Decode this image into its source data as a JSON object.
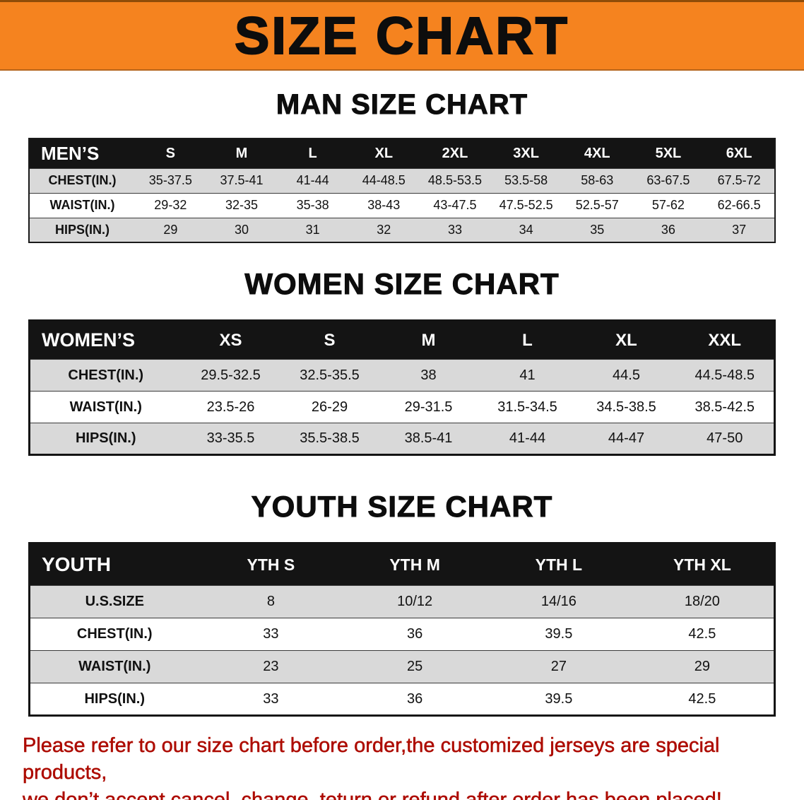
{
  "banner": {
    "title": "SIZE CHART"
  },
  "sections": [
    {
      "heading": "MAN SIZE CHART",
      "table": {
        "header": [
          "MEN’S",
          "S",
          "M",
          "L",
          "XL",
          "2XL",
          "3XL",
          "4XL",
          "5XL",
          "6XL"
        ],
        "rows": [
          [
            "CHEST(IN.)",
            "35-37.5",
            "37.5-41",
            "41-44",
            "44-48.5",
            "48.5-53.5",
            "53.5-58",
            "58-63",
            "63-67.5",
            "67.5-72"
          ],
          [
            "WAIST(IN.)",
            "29-32",
            "32-35",
            "35-38",
            "38-43",
            "43-47.5",
            "47.5-52.5",
            "52.5-57",
            "57-62",
            "62-66.5"
          ],
          [
            "HIPS(IN.)",
            "29",
            "30",
            "31",
            "32",
            "33",
            "34",
            "35",
            "36",
            "37"
          ]
        ]
      }
    },
    {
      "heading": "WOMEN SIZE CHART",
      "table": {
        "header": [
          "WOMEN’S",
          "XS",
          "S",
          "M",
          "L",
          "XL",
          "XXL"
        ],
        "rows": [
          [
            "CHEST(IN.)",
            "29.5-32.5",
            "32.5-35.5",
            "38",
            "41",
            "44.5",
            "44.5-48.5"
          ],
          [
            "WAIST(IN.)",
            "23.5-26",
            "26-29",
            "29-31.5",
            "31.5-34.5",
            "34.5-38.5",
            "38.5-42.5"
          ],
          [
            "HIPS(IN.)",
            "33-35.5",
            "35.5-38.5",
            "38.5-41",
            "41-44",
            "44-47",
            "47-50"
          ]
        ]
      }
    },
    {
      "heading": "YOUTH SIZE CHART",
      "table": {
        "header": [
          "YOUTH",
          "YTH S",
          "YTH M",
          "YTH L",
          "YTH XL"
        ],
        "rows": [
          [
            "U.S.SIZE",
            "8",
            "10/12",
            "14/16",
            "18/20"
          ],
          [
            "CHEST(IN.)",
            "33",
            "36",
            "39.5",
            "42.5"
          ],
          [
            "WAIST(IN.)",
            "23",
            "25",
            "27",
            "29"
          ],
          [
            "HIPS(IN.)",
            "33",
            "36",
            "39.5",
            "42.5"
          ]
        ]
      }
    }
  ],
  "footer": {
    "lines": [
      "Please refer to our size chart before order,the customized jerseys are special products,",
      "we don’t accept cancel, change, teturn or refund after order has been placed!"
    ]
  },
  "colors": {
    "banner_bg": "#f5831f",
    "row_alt": "#d9d9d9",
    "note_red": "#ad0b00",
    "header_bg": "#141414"
  }
}
